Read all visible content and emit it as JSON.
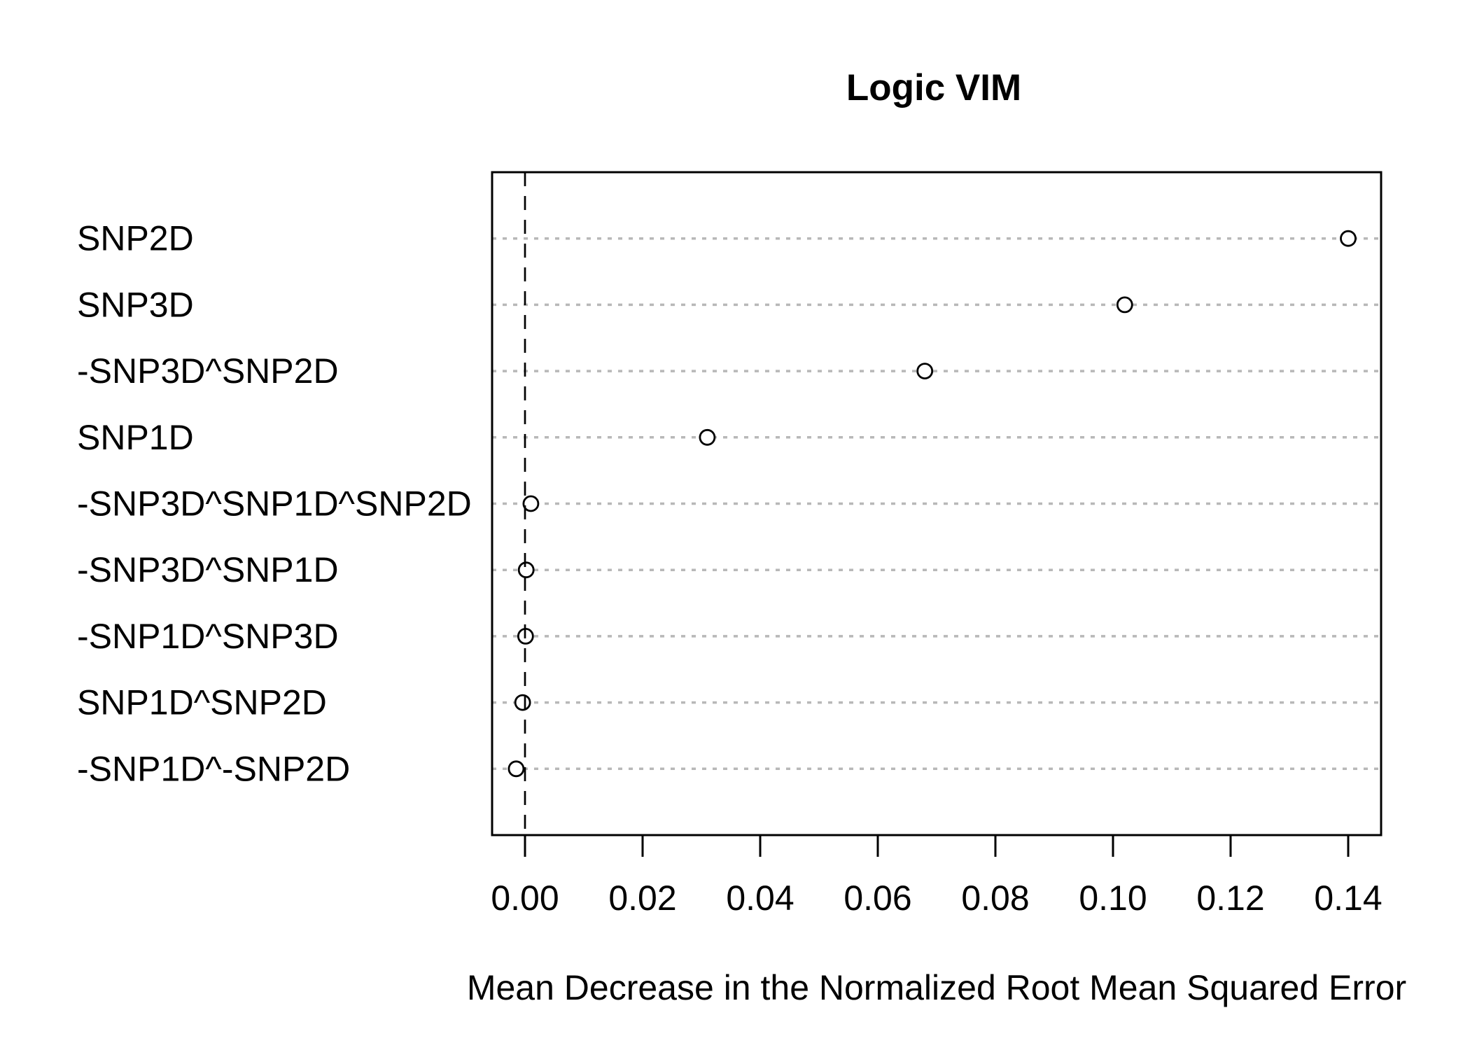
{
  "chart_data": {
    "type": "scatter",
    "subtype": "dotchart",
    "title": "Logic VIM",
    "xlabel": "Mean Decrease in the Normalized Root Mean Squared Error",
    "ylabel": "",
    "categories": [
      "SNP2D",
      "SNP3D",
      "-SNP3D^SNP2D",
      "SNP1D",
      "-SNP3D^SNP1D^SNP2D",
      "-SNP3D^SNP1D",
      "-SNP1D^SNP3D",
      "SNP1D^SNP2D",
      "-SNP1D^-SNP2D"
    ],
    "values": [
      0.14,
      0.102,
      0.068,
      0.031,
      0.001,
      0.0002,
      0.0001,
      -0.0004,
      -0.0015
    ],
    "x_tick_labels": [
      "0.00",
      "0.02",
      "0.04",
      "0.06",
      "0.08",
      "0.10",
      "0.12",
      "0.14"
    ],
    "x_tick_values": [
      0.0,
      0.02,
      0.04,
      0.06,
      0.08,
      0.1,
      0.12,
      0.14
    ],
    "xlim": [
      -0.0056,
      0.1456
    ],
    "reference_line_x": 0,
    "grid": {
      "horizontal": "dotted",
      "vertical": false
    },
    "legend": null,
    "marker": "open-circle",
    "colors": {
      "marker": "#000000",
      "grid_dotted": "#b8b8b8",
      "axis": "#000000",
      "reference_dashed": "#000000",
      "text": "#000000",
      "background": "#ffffff"
    }
  }
}
